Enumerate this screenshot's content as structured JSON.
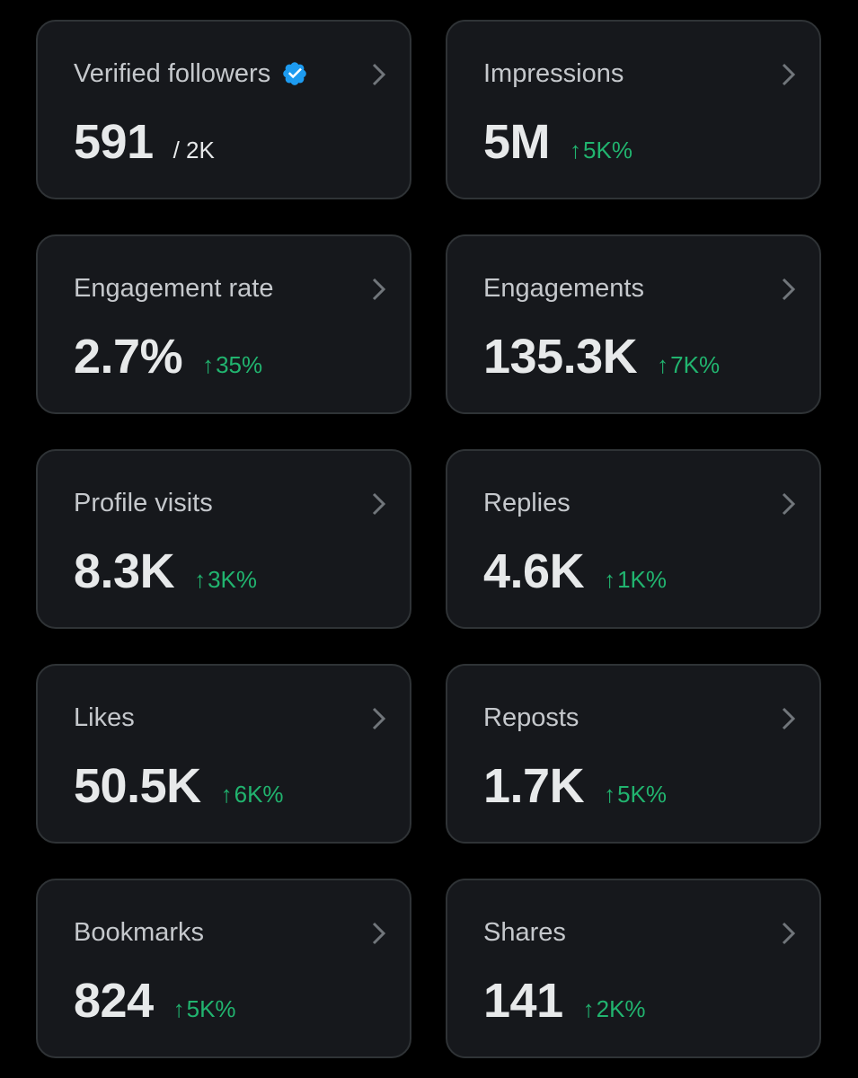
{
  "cards": [
    {
      "title": "Verified followers",
      "value": "591",
      "sub": "/ 2K",
      "change": "",
      "verified": true
    },
    {
      "title": "Impressions",
      "value": "5M",
      "sub": "",
      "change": "5K%"
    },
    {
      "title": "Engagement rate",
      "value": "2.7%",
      "sub": "",
      "change": "35%"
    },
    {
      "title": "Engagements",
      "value": "135.3K",
      "sub": "",
      "change": "7K%"
    },
    {
      "title": "Profile visits",
      "value": "8.3K",
      "sub": "",
      "change": "3K%"
    },
    {
      "title": "Replies",
      "value": "4.6K",
      "sub": "",
      "change": "1K%"
    },
    {
      "title": "Likes",
      "value": "50.5K",
      "sub": "",
      "change": "6K%"
    },
    {
      "title": "Reposts",
      "value": "1.7K",
      "sub": "",
      "change": "5K%"
    },
    {
      "title": "Bookmarks",
      "value": "824",
      "sub": "",
      "change": "5K%"
    },
    {
      "title": "Shares",
      "value": "141",
      "sub": "",
      "change": "2K%"
    }
  ],
  "icons": {
    "change_arrow": "↑",
    "chevron": "chevron-right-icon",
    "verified": "verified-badge-icon"
  },
  "colors": {
    "background": "#000000",
    "card": "#16181c",
    "card_border": "#2f3336",
    "positive": "#21b46f",
    "verified": "#1d9bf0"
  }
}
